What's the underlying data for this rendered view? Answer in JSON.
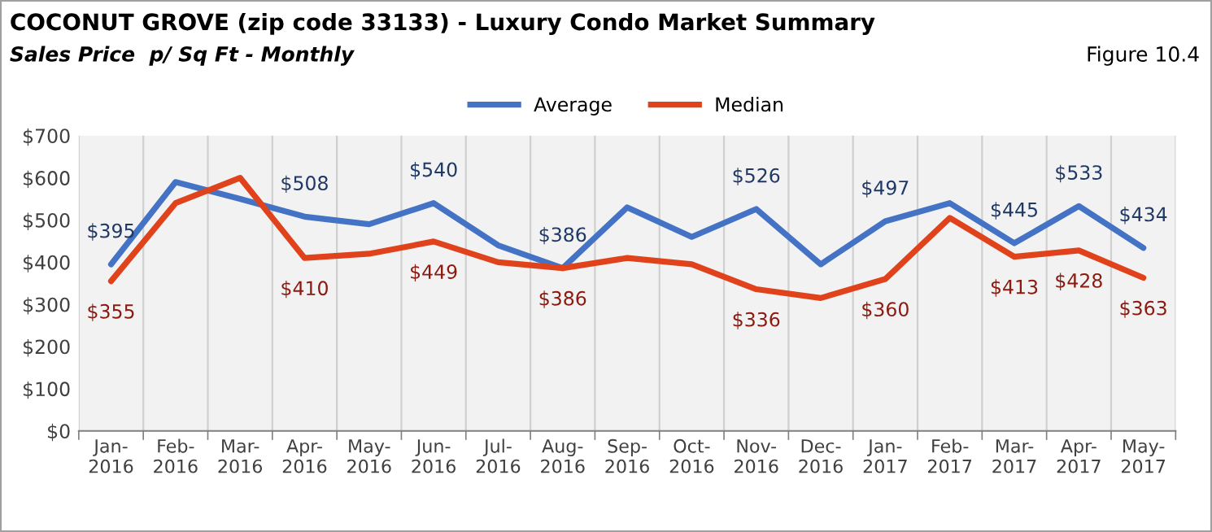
{
  "chart_data": {
    "type": "line",
    "title": "COCONUT GROVE (zip code 33133) - Luxury Condo Market Summary",
    "subtitle": "Sales Price  p/ Sq Ft - Monthly",
    "annotations": [
      "Figure 10.4"
    ],
    "categories": [
      "Jan-\n2016",
      "Feb-\n2016",
      "Mar-\n2016",
      "Apr-\n2016",
      "May-\n2016",
      "Jun-\n2016",
      "Jul-\n2016",
      "Aug-\n2016",
      "Sep-\n2016",
      "Oct-\n2016",
      "Nov-\n2016",
      "Dec-\n2016",
      "Jan-\n2017",
      "Feb-\n2017",
      "Mar-\n2017",
      "Apr-\n2017",
      "May-\n2017"
    ],
    "series": [
      {
        "name": "Average",
        "color": "#4472c4",
        "values": [
          395,
          590,
          550,
          508,
          490,
          540,
          440,
          386,
          530,
          460,
          526,
          395,
          497,
          540,
          445,
          533,
          434
        ],
        "value_labels": [
          "$395",
          null,
          null,
          "$508",
          null,
          "$540",
          null,
          "$386",
          null,
          null,
          "$526",
          null,
          "$497",
          null,
          "$445",
          "$533",
          "$434"
        ]
      },
      {
        "name": "Median",
        "color": "#e0431c",
        "values": [
          355,
          540,
          600,
          410,
          420,
          449,
          400,
          386,
          410,
          395,
          336,
          315,
          360,
          505,
          413,
          428,
          363
        ],
        "value_labels": [
          "$355",
          null,
          null,
          "$410",
          null,
          "$449",
          null,
          "$386",
          null,
          null,
          "$336",
          null,
          "$360",
          null,
          "$413",
          "$428",
          "$363"
        ]
      }
    ],
    "ylim": [
      0,
      700
    ],
    "yticks": [
      {
        "value": 0,
        "label": "$0"
      },
      {
        "value": 100,
        "label": "$100"
      },
      {
        "value": 200,
        "label": "$200"
      },
      {
        "value": 300,
        "label": "$300"
      },
      {
        "value": 400,
        "label": "$400"
      },
      {
        "value": 500,
        "label": "$500"
      },
      {
        "value": 600,
        "label": "$600"
      },
      {
        "value": 700,
        "label": "$700"
      }
    ],
    "grid": "x",
    "legend": "top",
    "marker": "none",
    "line_style": "solid"
  }
}
